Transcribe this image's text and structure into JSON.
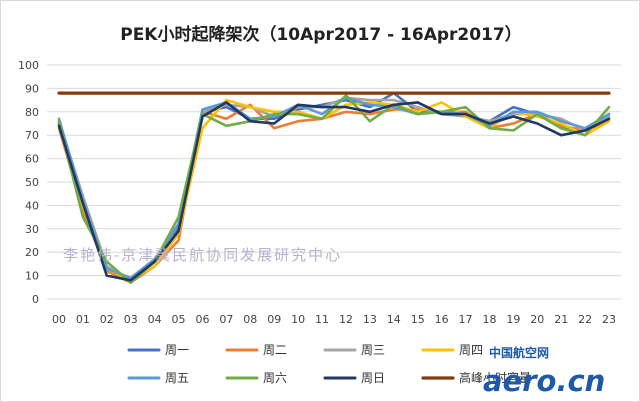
{
  "chart_data": {
    "type": "line",
    "title": "PEK小时起降架次（10Apr2017 - 16Apr2017）",
    "categories": [
      "00",
      "01",
      "02",
      "03",
      "04",
      "05",
      "06",
      "07",
      "08",
      "09",
      "10",
      "11",
      "12",
      "13",
      "14",
      "15",
      "16",
      "17",
      "18",
      "19",
      "20",
      "21",
      "22",
      "23"
    ],
    "ylim": [
      0,
      100
    ],
    "yticks": [
      0,
      10,
      20,
      30,
      40,
      50,
      60,
      70,
      80,
      90,
      100
    ],
    "grid": true,
    "legend_position": "bottom",
    "series": [
      {
        "name": "周一",
        "color": "#4472C4",
        "values": [
          75,
          40,
          12,
          8,
          16,
          30,
          80,
          82,
          77,
          77,
          81,
          83,
          85,
          82,
          88,
          80,
          80,
          78,
          76,
          82,
          79,
          73,
          72,
          79
        ]
      },
      {
        "name": "周二",
        "color": "#ED7D31",
        "values": [
          73,
          38,
          12,
          7,
          14,
          25,
          80,
          77,
          83,
          73,
          76,
          77,
          80,
          79,
          81,
          81,
          80,
          80,
          73,
          75,
          79,
          74,
          72,
          76
        ]
      },
      {
        "name": "周三",
        "color": "#A5A5A5",
        "values": [
          76,
          44,
          14,
          8,
          16,
          32,
          80,
          83,
          82,
          78,
          82,
          82,
          86,
          85,
          85,
          82,
          79,
          78,
          76,
          79,
          79,
          77,
          72,
          78
        ]
      },
      {
        "name": "周四",
        "color": "#FFC000",
        "values": [
          74,
          40,
          13,
          8,
          14,
          28,
          73,
          85,
          82,
          80,
          80,
          77,
          83,
          84,
          83,
          80,
          84,
          78,
          73,
          80,
          78,
          75,
          70,
          76
        ]
      },
      {
        "name": "周五",
        "color": "#5B9BD5",
        "values": [
          77,
          42,
          13,
          9,
          17,
          32,
          81,
          84,
          77,
          78,
          83,
          79,
          86,
          83,
          82,
          79,
          80,
          79,
          74,
          80,
          80,
          76,
          73,
          79
        ]
      },
      {
        "name": "周六",
        "color": "#70AD47",
        "values": [
          76,
          35,
          16,
          7,
          16,
          35,
          79,
          74,
          76,
          79,
          79,
          77,
          87,
          76,
          83,
          79,
          80,
          82,
          73,
          72,
          79,
          73,
          70,
          82
        ]
      },
      {
        "name": "周日",
        "color": "#1F3864",
        "values": [
          74,
          41,
          10,
          8,
          16,
          29,
          78,
          84,
          76,
          75,
          83,
          82,
          82,
          80,
          83,
          84,
          79,
          79,
          75,
          78,
          75,
          70,
          72,
          77
        ]
      },
      {
        "name": "高峰小时容量",
        "color": "#843C0C",
        "values": [
          88,
          88,
          88,
          88,
          88,
          88,
          88,
          88,
          88,
          88,
          88,
          88,
          88,
          88,
          88,
          88,
          88,
          88,
          88,
          88,
          88,
          88,
          88,
          88
        ]
      }
    ]
  },
  "overlays": {
    "watermark": "李艳伟-京津冀民航协同发展研究中心",
    "logo_cn": "中国航空网",
    "logo_en": "aero.cn"
  }
}
